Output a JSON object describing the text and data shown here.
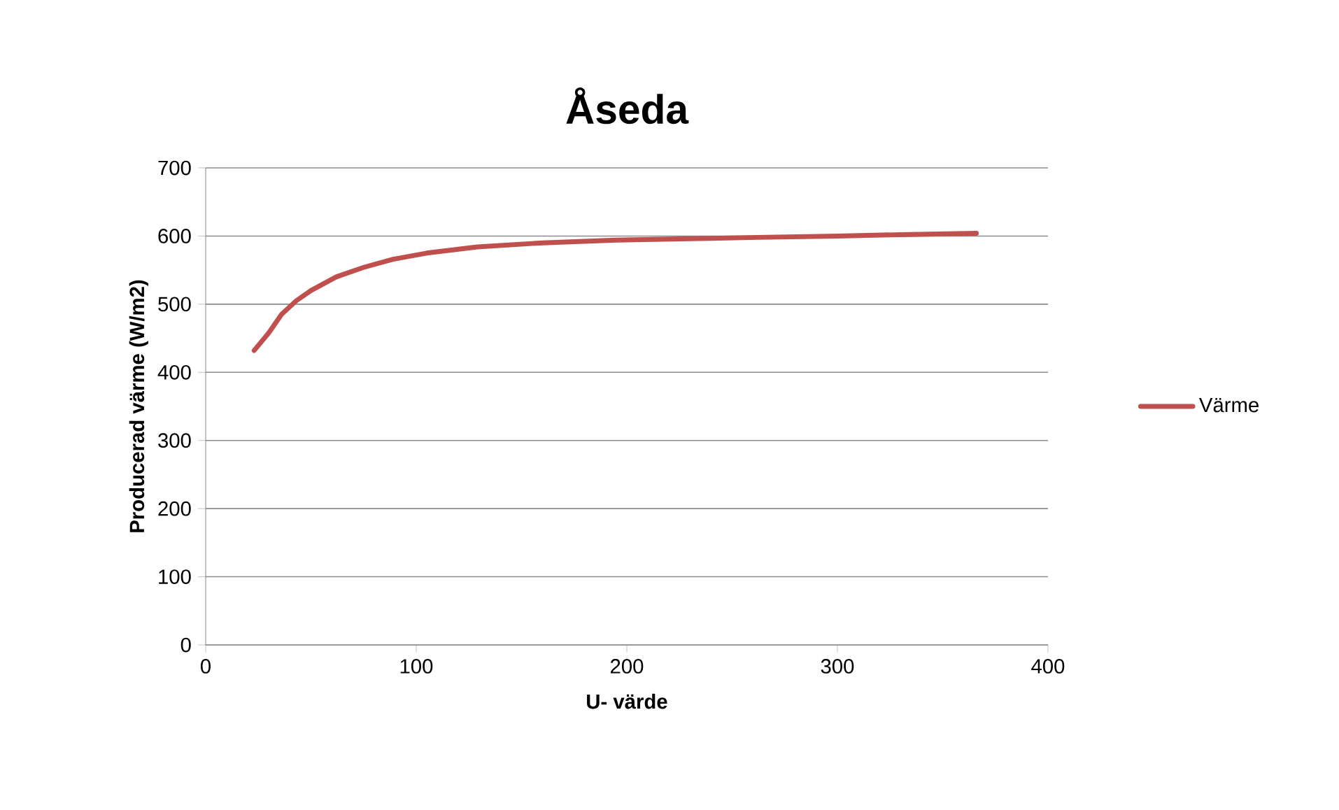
{
  "chart_data": {
    "type": "line",
    "title": "Åseda",
    "xlabel": "U- värde",
    "ylabel": "Producerad värme (W/m2)",
    "xlim": [
      0,
      400
    ],
    "xticks": [
      0,
      100,
      200,
      300,
      400
    ],
    "ylim": [
      0,
      700
    ],
    "yticks": [
      0,
      100,
      200,
      300,
      400,
      500,
      600,
      700
    ],
    "grid": "y",
    "legend": "right",
    "marker": "none",
    "line_style": "solid",
    "series": [
      {
        "name": "Värme",
        "color": "#c0504d",
        "x": [
          23,
          30,
          36,
          43,
          50,
          62,
          75,
          89,
          105,
          129,
          160,
          195,
          230,
          262,
          300,
          330,
          366
        ],
        "values": [
          432,
          458,
          485,
          505,
          520,
          540,
          554,
          566,
          575,
          584,
          590,
          594,
          596,
          598,
          600,
          602,
          604
        ]
      }
    ]
  }
}
